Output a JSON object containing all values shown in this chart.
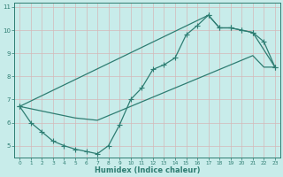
{
  "xlabel": "Humidex (Indice chaleur)",
  "xlim": [
    -0.5,
    23.5
  ],
  "ylim": [
    4.5,
    11.2
  ],
  "yticks": [
    5,
    6,
    7,
    8,
    9,
    10,
    11
  ],
  "xticks": [
    0,
    1,
    2,
    3,
    4,
    5,
    6,
    7,
    8,
    9,
    10,
    11,
    12,
    13,
    14,
    15,
    16,
    17,
    18,
    19,
    20,
    21,
    22,
    23
  ],
  "bg_color": "#c8ecea",
  "grid_color": "#aed8d4",
  "line_color": "#2e7d72",
  "curve1_x": [
    0,
    1,
    2,
    3,
    4,
    5,
    6,
    7,
    8,
    9,
    10,
    11,
    12,
    13,
    14,
    15,
    16,
    17,
    18,
    19,
    20,
    21,
    22,
    23
  ],
  "curve1_y": [
    6.7,
    6.0,
    5.6,
    5.2,
    5.0,
    4.85,
    4.75,
    4.65,
    5.0,
    5.9,
    7.0,
    7.5,
    8.3,
    8.5,
    8.8,
    9.8,
    10.2,
    10.65,
    10.1,
    10.1,
    10.0,
    9.9,
    9.5,
    8.4
  ],
  "curve2_x": [
    0,
    1,
    2,
    3,
    4,
    5,
    6,
    7,
    8,
    9,
    10,
    11,
    12,
    13,
    14,
    15,
    16,
    17,
    18,
    19,
    20,
    21,
    22,
    23
  ],
  "curve2_y": [
    6.7,
    6.6,
    6.5,
    6.4,
    6.3,
    6.2,
    6.15,
    6.1,
    6.3,
    6.5,
    6.7,
    6.9,
    7.1,
    7.3,
    7.5,
    7.7,
    7.9,
    8.1,
    8.3,
    8.5,
    8.7,
    8.9,
    8.4,
    8.4
  ],
  "curve3_x": [
    0,
    17,
    18,
    19,
    20,
    21,
    23
  ],
  "curve3_y": [
    6.7,
    10.65,
    10.1,
    10.1,
    10.0,
    9.9,
    8.4
  ]
}
